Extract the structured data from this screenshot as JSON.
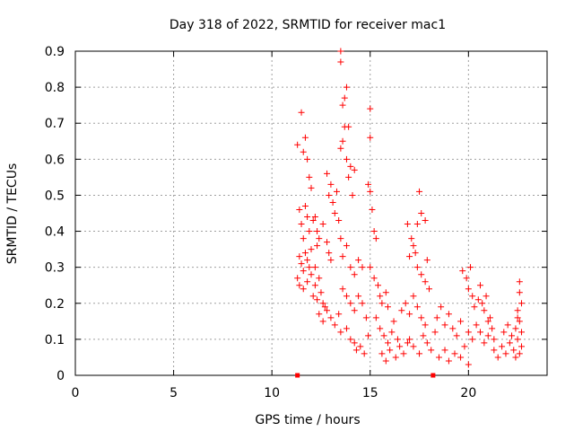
{
  "chart_data": {
    "type": "scatter",
    "title": "Day 318 of 2022, SRMTID for receiver mac1",
    "xlabel": "GPS time / hours",
    "ylabel": "SRMTID / TECUs",
    "xlim": [
      0,
      24
    ],
    "ylim": [
      0,
      0.9
    ],
    "xticks": [
      0,
      5,
      10,
      15,
      20
    ],
    "yticks": [
      0,
      0.1,
      0.2,
      0.3,
      0.4,
      0.5,
      0.6,
      0.7,
      0.8,
      0.9
    ],
    "grid": true,
    "marker": "+",
    "marker_color": "#ff0000",
    "axis_markers": [
      11.3,
      18.2
    ],
    "series": [
      {
        "name": "SRMTID",
        "points": [
          [
            11.3,
            0.64
          ],
          [
            11.5,
            0.73
          ],
          [
            11.6,
            0.62
          ],
          [
            11.7,
            0.66
          ],
          [
            11.8,
            0.6
          ],
          [
            11.9,
            0.55
          ],
          [
            12.0,
            0.52
          ],
          [
            11.4,
            0.46
          ],
          [
            11.5,
            0.42
          ],
          [
            11.6,
            0.38
          ],
          [
            11.7,
            0.47
          ],
          [
            11.8,
            0.44
          ],
          [
            11.9,
            0.4
          ],
          [
            12.1,
            0.43
          ],
          [
            11.4,
            0.33
          ],
          [
            11.5,
            0.31
          ],
          [
            11.6,
            0.29
          ],
          [
            11.7,
            0.34
          ],
          [
            11.8,
            0.32
          ],
          [
            11.9,
            0.3
          ],
          [
            12.0,
            0.35
          ],
          [
            11.3,
            0.27
          ],
          [
            11.4,
            0.25
          ],
          [
            11.6,
            0.24
          ],
          [
            11.8,
            0.26
          ],
          [
            12.0,
            0.28
          ],
          [
            12.2,
            0.3
          ],
          [
            12.3,
            0.36
          ],
          [
            12.1,
            0.22
          ],
          [
            12.2,
            0.25
          ],
          [
            12.3,
            0.21
          ],
          [
            12.4,
            0.27
          ],
          [
            12.5,
            0.23
          ],
          [
            12.6,
            0.2
          ],
          [
            12.7,
            0.19
          ],
          [
            12.2,
            0.44
          ],
          [
            12.3,
            0.4
          ],
          [
            12.4,
            0.38
          ],
          [
            12.6,
            0.42
          ],
          [
            12.8,
            0.37
          ],
          [
            12.9,
            0.34
          ],
          [
            13.0,
            0.32
          ],
          [
            12.4,
            0.17
          ],
          [
            12.6,
            0.15
          ],
          [
            12.8,
            0.18
          ],
          [
            13.0,
            0.16
          ],
          [
            13.2,
            0.14
          ],
          [
            13.4,
            0.17
          ],
          [
            13.5,
            0.12
          ],
          [
            12.8,
            0.56
          ],
          [
            12.9,
            0.5
          ],
          [
            13.0,
            0.53
          ],
          [
            13.1,
            0.48
          ],
          [
            13.2,
            0.45
          ],
          [
            13.3,
            0.51
          ],
          [
            13.4,
            0.43
          ],
          [
            13.5,
            0.9
          ],
          [
            13.5,
            0.87
          ],
          [
            13.6,
            0.75
          ],
          [
            13.7,
            0.77
          ],
          [
            13.8,
            0.8
          ],
          [
            13.7,
            0.69
          ],
          [
            13.9,
            0.69
          ],
          [
            13.6,
            0.65
          ],
          [
            13.5,
            0.63
          ],
          [
            13.8,
            0.6
          ],
          [
            14.0,
            0.58
          ],
          [
            14.2,
            0.57
          ],
          [
            13.9,
            0.55
          ],
          [
            14.1,
            0.5
          ],
          [
            13.5,
            0.38
          ],
          [
            13.6,
            0.33
          ],
          [
            13.8,
            0.36
          ],
          [
            14.0,
            0.3
          ],
          [
            14.2,
            0.28
          ],
          [
            14.4,
            0.32
          ],
          [
            14.6,
            0.3
          ],
          [
            13.6,
            0.24
          ],
          [
            13.8,
            0.22
          ],
          [
            14.0,
            0.2
          ],
          [
            14.2,
            0.18
          ],
          [
            14.4,
            0.22
          ],
          [
            14.6,
            0.2
          ],
          [
            14.8,
            0.16
          ],
          [
            13.8,
            0.13
          ],
          [
            14.0,
            0.1
          ],
          [
            14.2,
            0.09
          ],
          [
            14.3,
            0.07
          ],
          [
            14.5,
            0.08
          ],
          [
            14.7,
            0.06
          ],
          [
            14.9,
            0.11
          ],
          [
            15.0,
            0.74
          ],
          [
            15.0,
            0.66
          ],
          [
            14.9,
            0.53
          ],
          [
            15.0,
            0.51
          ],
          [
            15.1,
            0.46
          ],
          [
            15.2,
            0.4
          ],
          [
            15.3,
            0.38
          ],
          [
            15.0,
            0.3
          ],
          [
            15.2,
            0.27
          ],
          [
            15.4,
            0.25
          ],
          [
            15.5,
            0.22
          ],
          [
            15.6,
            0.2
          ],
          [
            15.8,
            0.23
          ],
          [
            15.9,
            0.19
          ],
          [
            15.3,
            0.16
          ],
          [
            15.5,
            0.13
          ],
          [
            15.7,
            0.11
          ],
          [
            15.9,
            0.09
          ],
          [
            16.1,
            0.12
          ],
          [
            16.2,
            0.15
          ],
          [
            16.4,
            0.1
          ],
          [
            15.6,
            0.06
          ],
          [
            15.8,
            0.04
          ],
          [
            16.0,
            0.07
          ],
          [
            16.3,
            0.05
          ],
          [
            16.5,
            0.08
          ],
          [
            16.7,
            0.06
          ],
          [
            16.9,
            0.09
          ],
          [
            16.6,
            0.18
          ],
          [
            16.8,
            0.2
          ],
          [
            17.0,
            0.17
          ],
          [
            17.2,
            0.22
          ],
          [
            17.4,
            0.19
          ],
          [
            17.6,
            0.16
          ],
          [
            17.8,
            0.14
          ],
          [
            17.2,
            0.36
          ],
          [
            17.3,
            0.34
          ],
          [
            17.4,
            0.3
          ],
          [
            17.6,
            0.28
          ],
          [
            17.8,
            0.26
          ],
          [
            17.9,
            0.32
          ],
          [
            18.0,
            0.24
          ],
          [
            17.5,
            0.51
          ],
          [
            17.6,
            0.45
          ],
          [
            17.8,
            0.43
          ],
          [
            17.4,
            0.42
          ],
          [
            16.9,
            0.42
          ],
          [
            17.1,
            0.38
          ],
          [
            17.0,
            0.33
          ],
          [
            17.0,
            0.1
          ],
          [
            17.2,
            0.08
          ],
          [
            17.5,
            0.06
          ],
          [
            17.7,
            0.11
          ],
          [
            17.9,
            0.09
          ],
          [
            18.1,
            0.07
          ],
          [
            18.3,
            0.12
          ],
          [
            18.4,
            0.16
          ],
          [
            18.6,
            0.19
          ],
          [
            18.8,
            0.14
          ],
          [
            19.0,
            0.17
          ],
          [
            19.2,
            0.13
          ],
          [
            19.4,
            0.11
          ],
          [
            19.6,
            0.15
          ],
          [
            18.5,
            0.05
          ],
          [
            18.8,
            0.07
          ],
          [
            19.0,
            0.04
          ],
          [
            19.3,
            0.06
          ],
          [
            19.6,
            0.05
          ],
          [
            19.8,
            0.08
          ],
          [
            20.0,
            0.03
          ],
          [
            19.7,
            0.29
          ],
          [
            19.9,
            0.27
          ],
          [
            20.1,
            0.3
          ],
          [
            20.0,
            0.24
          ],
          [
            20.2,
            0.22
          ],
          [
            20.3,
            0.19
          ],
          [
            20.5,
            0.21
          ],
          [
            20.0,
            0.12
          ],
          [
            20.2,
            0.1
          ],
          [
            20.4,
            0.14
          ],
          [
            20.6,
            0.12
          ],
          [
            20.8,
            0.09
          ],
          [
            21.0,
            0.11
          ],
          [
            21.1,
            0.16
          ],
          [
            20.6,
            0.25
          ],
          [
            20.7,
            0.2
          ],
          [
            20.8,
            0.18
          ],
          [
            20.9,
            0.22
          ],
          [
            21.0,
            0.15
          ],
          [
            21.2,
            0.13
          ],
          [
            21.3,
            0.1
          ],
          [
            21.3,
            0.07
          ],
          [
            21.5,
            0.05
          ],
          [
            21.7,
            0.08
          ],
          [
            21.9,
            0.06
          ],
          [
            22.1,
            0.09
          ],
          [
            22.3,
            0.07
          ],
          [
            22.5,
            0.1
          ],
          [
            21.8,
            0.12
          ],
          [
            22.0,
            0.14
          ],
          [
            22.2,
            0.11
          ],
          [
            22.4,
            0.13
          ],
          [
            22.6,
            0.15
          ],
          [
            22.7,
            0.12
          ],
          [
            22.5,
            0.18
          ],
          [
            22.6,
            0.26
          ],
          [
            22.6,
            0.23
          ],
          [
            22.7,
            0.2
          ],
          [
            22.5,
            0.16
          ],
          [
            22.7,
            0.08
          ],
          [
            22.6,
            0.06
          ],
          [
            22.4,
            0.05
          ]
        ]
      }
    ]
  }
}
